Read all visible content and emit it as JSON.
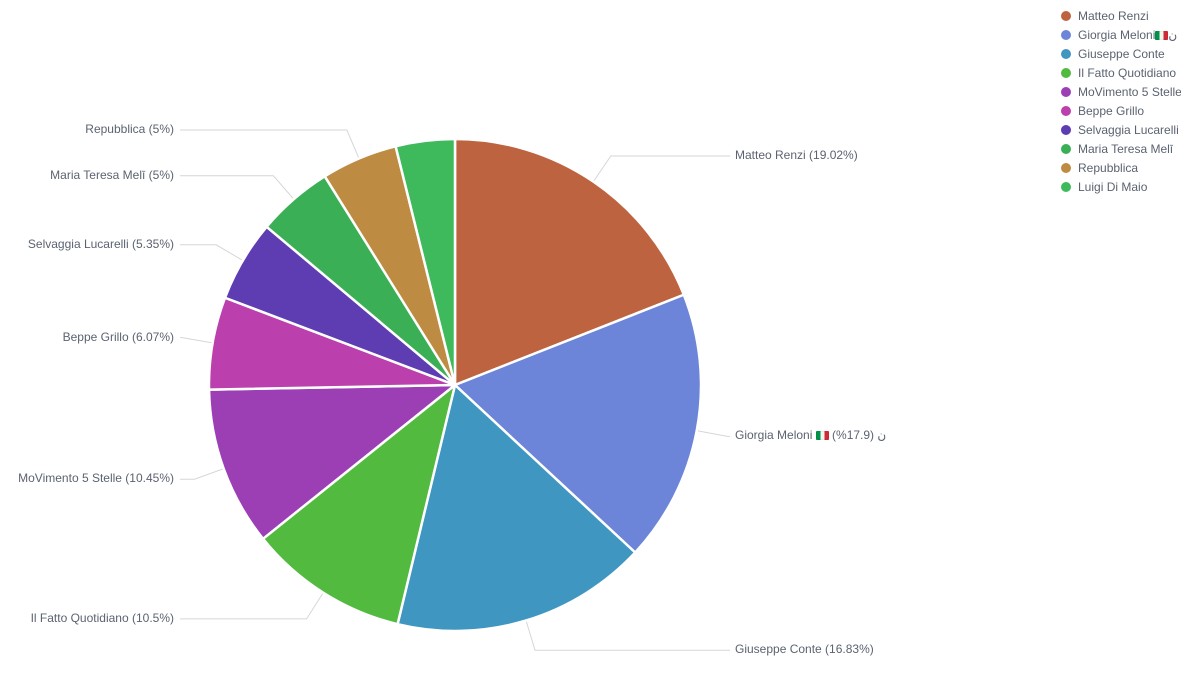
{
  "chart_data": {
    "type": "pie",
    "title": "",
    "legend_position": "top-right",
    "start_angle": "top",
    "direction": "clockwise",
    "total": 100,
    "slices": [
      {
        "id": "matteo-renzi",
        "name": "Matteo Renzi",
        "value": 19.02,
        "color": "#BD6340",
        "label": {
          "side": "right",
          "parts": [
            {
              "text": "Matteo Renzi (19.02%)"
            }
          ]
        },
        "legend_parts": [
          {
            "text": "Matteo Renzi"
          }
        ]
      },
      {
        "id": "giorgia-meloni",
        "name": "Giorgia Meloni",
        "value": 17.9,
        "color": "#6C85D8",
        "label": {
          "side": "right",
          "parts": [
            {
              "text": "Giorgia Meloni "
            },
            {
              "flag": "italy"
            },
            {
              "text": " (%17.9) ن"
            }
          ]
        },
        "legend_parts": [
          {
            "text": "Giorgia Meloni "
          },
          {
            "flag": "italy"
          },
          {
            "text": " ن"
          }
        ]
      },
      {
        "id": "giuseppe-conte",
        "name": "Giuseppe Conte",
        "value": 16.83,
        "color": "#3F96C1",
        "label": {
          "side": "right",
          "parts": [
            {
              "text": "Giuseppe Conte (16.83%)"
            }
          ]
        },
        "legend_parts": [
          {
            "text": "Giuseppe Conte"
          }
        ]
      },
      {
        "id": "il-fatto-quotidiano",
        "name": "Il Fatto Quotidiano",
        "value": 10.5,
        "color": "#52BA3F",
        "label": {
          "side": "left",
          "parts": [
            {
              "text": "Il Fatto Quotidiano (10.5%)"
            }
          ]
        },
        "legend_parts": [
          {
            "text": "Il Fatto Quotidiano"
          }
        ]
      },
      {
        "id": "movimento-5-stelle",
        "name": "MoVimento 5 Stelle",
        "value": 10.45,
        "color": "#9C3FB5",
        "label": {
          "side": "left",
          "parts": [
            {
              "text": "MoVimento 5 Stelle (10.45%)"
            }
          ]
        },
        "legend_parts": [
          {
            "text": "MoVimento 5 Stelle"
          }
        ]
      },
      {
        "id": "beppe-grillo",
        "name": "Beppe Grillo",
        "value": 6.07,
        "color": "#BB3FAC",
        "label": {
          "side": "left",
          "parts": [
            {
              "text": "Beppe Grillo (6.07%)"
            }
          ]
        },
        "legend_parts": [
          {
            "text": "Beppe Grillo"
          }
        ]
      },
      {
        "id": "selvaggia-lucarelli",
        "name": "Selvaggia Lucarelli",
        "value": 5.35,
        "color": "#5E3CB2",
        "label": {
          "side": "left",
          "parts": [
            {
              "text": "Selvaggia Lucarelli (5.35%)"
            }
          ]
        },
        "legend_parts": [
          {
            "text": "Selvaggia Lucarelli"
          }
        ]
      },
      {
        "id": "maria-teresa-meli",
        "name": "Maria Teresa Melī",
        "value": 5,
        "color": "#3AAF55",
        "label": {
          "side": "left",
          "parts": [
            {
              "text": "Maria Teresa Melī (5%)"
            }
          ]
        },
        "legend_parts": [
          {
            "text": "Maria Teresa Melī"
          }
        ]
      },
      {
        "id": "repubblica",
        "name": "Repubblica",
        "value": 5,
        "color": "#BD8B41",
        "label": {
          "side": "left",
          "parts": [
            {
              "text": "Repubblica (5%)"
            }
          ]
        },
        "legend_parts": [
          {
            "text": "Repubblica"
          }
        ]
      },
      {
        "id": "luigi-di-maio",
        "name": "Luigi Di Maio",
        "value": 3.88,
        "color": "#3EBA5C",
        "label": null,
        "legend_parts": [
          {
            "text": "Luigi Di Maio"
          }
        ]
      }
    ]
  },
  "colors": {
    "background": "#FFFFFF",
    "slice_border": "#FFFFFF",
    "leader_line": "rgba(0,0,0,0.16)",
    "label_text": "#5B6370",
    "legend_text": "#5B6370",
    "flag_green": "#009246",
    "flag_white": "#F4F5F0",
    "flag_red": "#CE2B37"
  }
}
